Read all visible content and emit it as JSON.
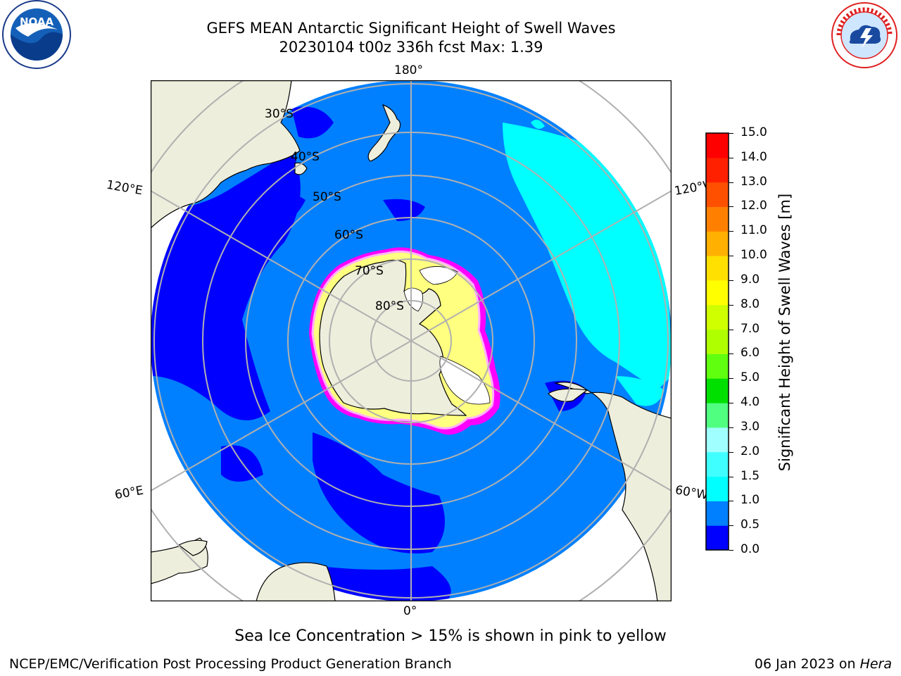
{
  "title": {
    "line1": "GEFS MEAN Antarctic Significant Height of Swell Waves",
    "line2": "20230104 t00z 336h fcst   Max: 1.39"
  },
  "logos": {
    "left": {
      "name": "NOAA",
      "text": "NOAA",
      "ring_text": "NATIONAL OCEANIC AND ATMOSPHERIC ADMINISTRATION · U.S. DEPARTMENT OF COMMERCE"
    },
    "right": {
      "name": "National Weather Service",
      "ring_text": "NATIONAL WEATHER SERVICE"
    }
  },
  "map": {
    "projection": "south-polar-stereographic",
    "meridian_labels": {
      "top": "180°",
      "bottom": "0°",
      "upper_left": "120°E",
      "upper_right": "120°W",
      "lower_left": "60°E",
      "lower_right": "60°W"
    },
    "latitude_labels": [
      "30°S",
      "40°S",
      "50°S",
      "60°S",
      "70°S",
      "80°S"
    ],
    "colors": {
      "land": "#eeeedd",
      "ocean_0_05": "#0000ff",
      "ocean_05_10": "#0080ff",
      "ocean_10_15": "#00ffff",
      "grid": "#b0b0b0",
      "sea_ice_outer": "#ff00ff",
      "sea_ice_mid": "#ffb0ff",
      "sea_ice_inner": "#ffff80",
      "ice_shelf_white": "#ffffff"
    }
  },
  "colorbar": {
    "label": "Significant Height of Swell Waves [m]",
    "ticks": [
      "0.0",
      "0.5",
      "1.0",
      "1.5",
      "2.0",
      "3.0",
      "4.0",
      "5.0",
      "6.0",
      "7.0",
      "8.0",
      "9.0",
      "10.0",
      "11.0",
      "12.0",
      "13.0",
      "14.0",
      "15.0"
    ],
    "bin_colors": [
      "#0000ff",
      "#0080ff",
      "#00ffff",
      "#40ffff",
      "#a0ffff",
      "#50ff80",
      "#00e000",
      "#60ff10",
      "#b0ff00",
      "#d0ff00",
      "#ffff00",
      "#ffe000",
      "#ffb000",
      "#ff8000",
      "#ff5000",
      "#ff2000",
      "#ff0000"
    ]
  },
  "caption": "Sea Ice Concentration > 15% is shown in pink to yellow",
  "footer": {
    "left": "NCEP/EMC/Verification Post Processing Product Generation Branch",
    "right_prefix": "06 Jan 2023 on ",
    "right_italic": "Hera"
  }
}
